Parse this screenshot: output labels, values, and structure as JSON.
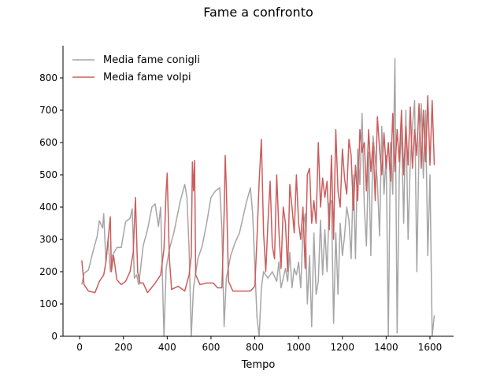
{
  "chart_data": {
    "type": "line",
    "title": "Fame a confronto",
    "x_label": "Tempo",
    "xlim": [
      -76,
      1708
    ],
    "ylim": [
      0,
      900
    ],
    "xticks": [
      0,
      200,
      400,
      600,
      800,
      1000,
      1200,
      1400,
      1600
    ],
    "yticks": [
      0,
      100,
      200,
      300,
      400,
      500,
      600,
      700,
      800
    ],
    "legend": "upper left",
    "series": [
      {
        "name": "Media fame conigli",
        "color": "#a6a6a6",
        "x": [
          10,
          20,
          40,
          60,
          80,
          90,
          105,
          110,
          120,
          130,
          140,
          150,
          170,
          190,
          210,
          230,
          240,
          250,
          260,
          270,
          290,
          310,
          330,
          345,
          360,
          370,
          385,
          395,
          410,
          430,
          460,
          480,
          490,
          500,
          510,
          520,
          540,
          560,
          580,
          600,
          620,
          640,
          650,
          660,
          670,
          690,
          710,
          730,
          760,
          780,
          790,
          810,
          820,
          830,
          840,
          860,
          880,
          900,
          910,
          920,
          940,
          950,
          960,
          970,
          980,
          990,
          1000,
          1010,
          1020,
          1030,
          1040,
          1050,
          1060,
          1070,
          1080,
          1090,
          1100,
          1110,
          1120,
          1130,
          1140,
          1150,
          1160,
          1170,
          1180,
          1190,
          1200,
          1210,
          1220,
          1230,
          1240,
          1250,
          1260,
          1270,
          1280,
          1290,
          1300,
          1310,
          1320,
          1330,
          1340,
          1350,
          1360,
          1370,
          1380,
          1390,
          1400,
          1410,
          1420,
          1430,
          1440,
          1450,
          1460,
          1470,
          1480,
          1490,
          1500,
          1510,
          1520,
          1530,
          1540,
          1550,
          1560,
          1570,
          1580,
          1590,
          1600,
          1610,
          1620
        ],
        "values": [
          160,
          195,
          205,
          260,
          310,
          358,
          335,
          380,
          230,
          300,
          200,
          250,
          275,
          275,
          355,
          365,
          395,
          180,
          190,
          160,
          280,
          330,
          400,
          410,
          340,
          400,
          0,
          210,
          270,
          320,
          420,
          470,
          430,
          270,
          0,
          150,
          240,
          280,
          350,
          430,
          450,
          460,
          330,
          30,
          180,
          250,
          290,
          320,
          410,
          460,
          380,
          60,
          0,
          150,
          200,
          180,
          200,
          170,
          230,
          150,
          210,
          170,
          260,
          150,
          210,
          190,
          230,
          150,
          330,
          380,
          100,
          250,
          30,
          320,
          130,
          170,
          360,
          190,
          330,
          200,
          410,
          420,
          40,
          320,
          130,
          350,
          250,
          310,
          400,
          360,
          240,
          500,
          240,
          580,
          470,
          690,
          400,
          280,
          570,
          250,
          620,
          550,
          480,
          310,
          650,
          440,
          560,
          0,
          600,
          440,
          860,
          10,
          500,
          650,
          350,
          700,
          300,
          540,
          650,
          730,
          200,
          590,
          720,
          490,
          700,
          250,
          500,
          0,
          65
        ]
      },
      {
        "name": "Media fame volpi",
        "color": "#cd5c5c",
        "x": [
          10,
          20,
          40,
          70,
          90,
          110,
          120,
          130,
          140,
          145,
          155,
          170,
          190,
          210,
          230,
          245,
          255,
          265,
          275,
          290,
          310,
          340,
          370,
          385,
          395,
          400,
          410,
          420,
          450,
          480,
          500,
          510,
          515,
          520,
          525,
          530,
          550,
          580,
          610,
          630,
          650,
          660,
          665,
          670,
          680,
          700,
          750,
          780,
          800,
          810,
          820,
          830,
          840,
          850,
          860,
          870,
          880,
          890,
          900,
          910,
          920,
          930,
          940,
          950,
          960,
          970,
          980,
          990,
          1000,
          1010,
          1020,
          1030,
          1040,
          1050,
          1060,
          1070,
          1080,
          1090,
          1100,
          1110,
          1120,
          1130,
          1140,
          1150,
          1160,
          1170,
          1180,
          1190,
          1200,
          1210,
          1220,
          1230,
          1240,
          1250,
          1260,
          1270,
          1280,
          1290,
          1300,
          1310,
          1320,
          1330,
          1340,
          1350,
          1360,
          1370,
          1380,
          1390,
          1400,
          1410,
          1420,
          1430,
          1440,
          1450,
          1460,
          1470,
          1480,
          1490,
          1500,
          1510,
          1520,
          1530,
          1540,
          1550,
          1560,
          1570,
          1580,
          1590,
          1600,
          1610,
          1620
        ],
        "values": [
          235,
          160,
          140,
          135,
          170,
          190,
          230,
          300,
          370,
          200,
          250,
          175,
          160,
          170,
          200,
          260,
          430,
          200,
          165,
          165,
          135,
          160,
          190,
          270,
          450,
          505,
          240,
          145,
          155,
          140,
          190,
          250,
          540,
          450,
          545,
          190,
          160,
          165,
          165,
          150,
          150,
          380,
          560,
          460,
          170,
          140,
          140,
          140,
          155,
          300,
          480,
          610,
          320,
          200,
          350,
          480,
          280,
          240,
          500,
          330,
          210,
          400,
          350,
          200,
          470,
          400,
          320,
          500,
          350,
          300,
          400,
          210,
          500,
          520,
          350,
          420,
          350,
          600,
          400,
          490,
          430,
          480,
          330,
          560,
          300,
          640,
          450,
          400,
          580,
          490,
          440,
          610,
          560,
          390,
          530,
          420,
          640,
          570,
          600,
          450,
          640,
          510,
          600,
          420,
          680,
          580,
          500,
          630,
          520,
          600,
          480,
          690,
          510,
          640,
          540,
          700,
          500,
          650,
          530,
          710,
          520,
          640,
          560,
          720,
          520,
          700,
          540,
          745,
          530,
          730,
          530
        ]
      }
    ]
  }
}
